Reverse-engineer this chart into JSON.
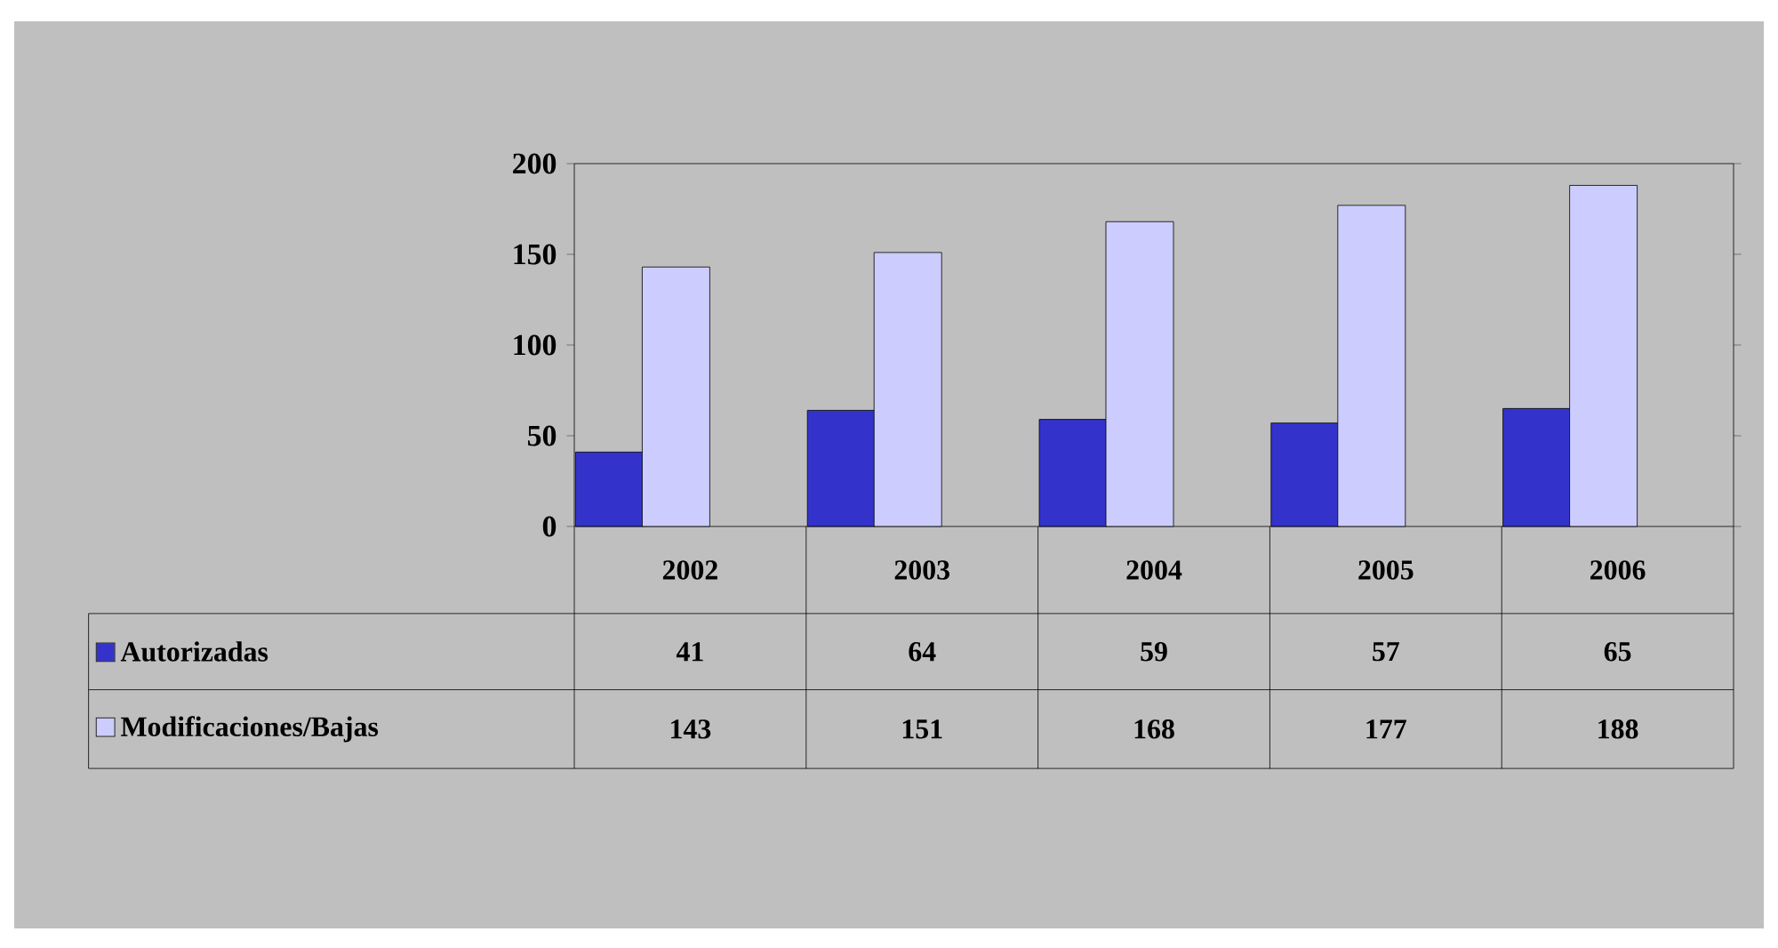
{
  "chart_data": {
    "type": "bar",
    "categories": [
      "2002",
      "2003",
      "2004",
      "2005",
      "2006"
    ],
    "series": [
      {
        "name": "Autorizadas",
        "color": "#3333cc",
        "values": [
          41,
          64,
          59,
          57,
          65
        ]
      },
      {
        "name": "Modificaciones/Bajas",
        "color": "#ccccff",
        "values": [
          143,
          151,
          168,
          177,
          188
        ]
      }
    ],
    "ylim": [
      0,
      200
    ],
    "yticks": [
      0,
      50,
      100,
      150,
      200
    ],
    "legend": "bottom",
    "data_labels": true
  }
}
